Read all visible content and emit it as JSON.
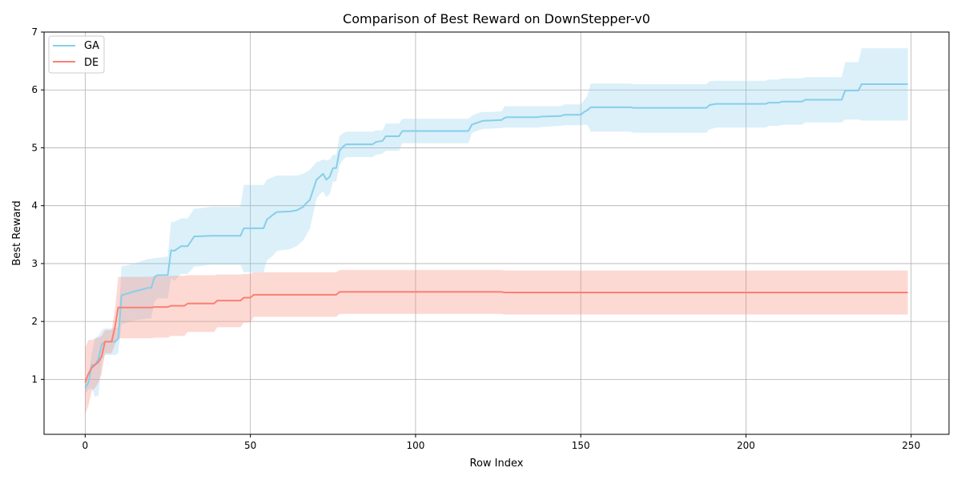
{
  "chart_data": {
    "type": "line",
    "title": "Comparison of Best Reward on DownStepper-v0",
    "xlabel": "Row Index",
    "ylabel": "Best Reward",
    "xlim": [
      -12.45,
      261.45
    ],
    "ylim": [
      0.05,
      7.0
    ],
    "xticks": [
      0,
      50,
      100,
      150,
      200,
      250
    ],
    "yticks": [
      1,
      2,
      3,
      4,
      5,
      6,
      7
    ],
    "grid": true,
    "legend": "top-left",
    "series": [
      {
        "name": "GA",
        "color": "#87ceeb",
        "band_color": "#87ceeb",
        "x": [
          0,
          1,
          2,
          3,
          4,
          5,
          6,
          8,
          9,
          10,
          11,
          15,
          19,
          20,
          21,
          22,
          25,
          26,
          27,
          29,
          31,
          33,
          34,
          38,
          47,
          48,
          54,
          55,
          57,
          58,
          62,
          64,
          66,
          67,
          68,
          70,
          71,
          72,
          73,
          74,
          75,
          76,
          77,
          78,
          79,
          87,
          88,
          90,
          91,
          95,
          96,
          116,
          117,
          118,
          119,
          120,
          121,
          122,
          126,
          127,
          128,
          137,
          138,
          144,
          145,
          150,
          151,
          152,
          153,
          165,
          166,
          188,
          189,
          191,
          206,
          207,
          210,
          211,
          217,
          218,
          229,
          230,
          234,
          235,
          249
        ],
        "y": [
          0.85,
          0.95,
          1.25,
          1.25,
          1.35,
          1.6,
          1.65,
          1.65,
          1.65,
          1.7,
          2.45,
          2.52,
          2.58,
          2.58,
          2.77,
          2.8,
          2.8,
          3.23,
          3.22,
          3.3,
          3.3,
          3.47,
          3.47,
          3.48,
          3.48,
          3.61,
          3.61,
          3.76,
          3.85,
          3.89,
          3.9,
          3.92,
          3.98,
          4.05,
          4.1,
          4.45,
          4.5,
          4.55,
          4.45,
          4.5,
          4.65,
          4.65,
          4.95,
          5.02,
          5.06,
          5.06,
          5.1,
          5.12,
          5.2,
          5.2,
          5.29,
          5.29,
          5.4,
          5.42,
          5.44,
          5.46,
          5.47,
          5.47,
          5.48,
          5.52,
          5.53,
          5.53,
          5.54,
          5.55,
          5.57,
          5.57,
          5.62,
          5.65,
          5.7,
          5.7,
          5.69,
          5.69,
          5.74,
          5.76,
          5.76,
          5.78,
          5.78,
          5.8,
          5.8,
          5.83,
          5.83,
          5.99,
          5.99,
          6.1,
          6.1
        ],
        "upper": [
          0.95,
          1.0,
          1.45,
          1.72,
          1.75,
          1.85,
          1.88,
          1.88,
          1.88,
          1.9,
          2.95,
          3.0,
          3.08,
          3.08,
          3.1,
          3.1,
          3.12,
          3.72,
          3.72,
          3.78,
          3.78,
          3.95,
          3.95,
          3.98,
          3.98,
          4.36,
          4.36,
          4.45,
          4.5,
          4.52,
          4.52,
          4.52,
          4.55,
          4.58,
          4.62,
          4.75,
          4.77,
          4.8,
          4.78,
          4.8,
          4.88,
          4.88,
          5.2,
          5.25,
          5.28,
          5.28,
          5.3,
          5.3,
          5.42,
          5.42,
          5.5,
          5.5,
          5.55,
          5.58,
          5.6,
          5.62,
          5.62,
          5.62,
          5.63,
          5.72,
          5.72,
          5.72,
          5.72,
          5.72,
          5.75,
          5.75,
          5.82,
          5.9,
          6.11,
          6.11,
          6.1,
          6.1,
          6.15,
          6.16,
          6.16,
          6.18,
          6.18,
          6.2,
          6.2,
          6.22,
          6.22,
          6.48,
          6.48,
          6.72,
          6.72
        ],
        "lower": [
          0.75,
          0.82,
          0.85,
          0.7,
          0.72,
          1.3,
          1.42,
          1.42,
          1.42,
          1.45,
          1.95,
          2.02,
          2.05,
          2.05,
          2.35,
          2.4,
          2.4,
          2.75,
          2.7,
          2.82,
          2.82,
          2.95,
          2.95,
          2.98,
          2.98,
          2.85,
          2.85,
          3.05,
          3.15,
          3.22,
          3.25,
          3.3,
          3.4,
          3.5,
          3.6,
          4.12,
          4.2,
          4.25,
          4.15,
          4.2,
          4.42,
          4.42,
          4.7,
          4.79,
          4.84,
          4.84,
          4.88,
          4.9,
          4.95,
          4.95,
          5.08,
          5.08,
          5.25,
          5.28,
          5.3,
          5.32,
          5.33,
          5.33,
          5.34,
          5.35,
          5.35,
          5.35,
          5.36,
          5.38,
          5.39,
          5.39,
          5.4,
          5.4,
          5.28,
          5.28,
          5.26,
          5.26,
          5.32,
          5.35,
          5.35,
          5.38,
          5.38,
          5.4,
          5.4,
          5.44,
          5.44,
          5.49,
          5.49,
          5.47,
          5.47
        ]
      },
      {
        "name": "DE",
        "color": "#fa8072",
        "band_color": "#fa8072",
        "x": [
          0,
          1,
          2,
          3,
          4,
          5,
          6,
          8,
          9,
          10,
          11,
          20,
          21,
          25,
          26,
          30,
          31,
          39,
          40,
          47,
          48,
          50,
          51,
          76,
          77,
          126,
          127,
          249
        ],
        "y": [
          0.95,
          1.1,
          1.2,
          1.25,
          1.3,
          1.4,
          1.65,
          1.65,
          1.9,
          2.24,
          2.24,
          2.24,
          2.25,
          2.25,
          2.27,
          2.27,
          2.31,
          2.31,
          2.36,
          2.36,
          2.41,
          2.41,
          2.46,
          2.46,
          2.51,
          2.51,
          2.5,
          2.5
        ],
        "upper": [
          1.55,
          1.68,
          1.68,
          1.7,
          1.72,
          1.75,
          1.85,
          1.85,
          2.2,
          2.77,
          2.77,
          2.77,
          2.78,
          2.78,
          2.79,
          2.79,
          2.8,
          2.8,
          2.81,
          2.81,
          2.82,
          2.82,
          2.85,
          2.85,
          2.89,
          2.89,
          2.88,
          2.88
        ],
        "lower": [
          0.4,
          0.55,
          0.8,
          0.85,
          0.95,
          1.1,
          1.45,
          1.45,
          1.6,
          1.71,
          1.71,
          1.71,
          1.72,
          1.72,
          1.75,
          1.75,
          1.82,
          1.82,
          1.9,
          1.9,
          1.98,
          1.98,
          2.08,
          2.08,
          2.13,
          2.13,
          2.12,
          2.12
        ]
      }
    ]
  }
}
